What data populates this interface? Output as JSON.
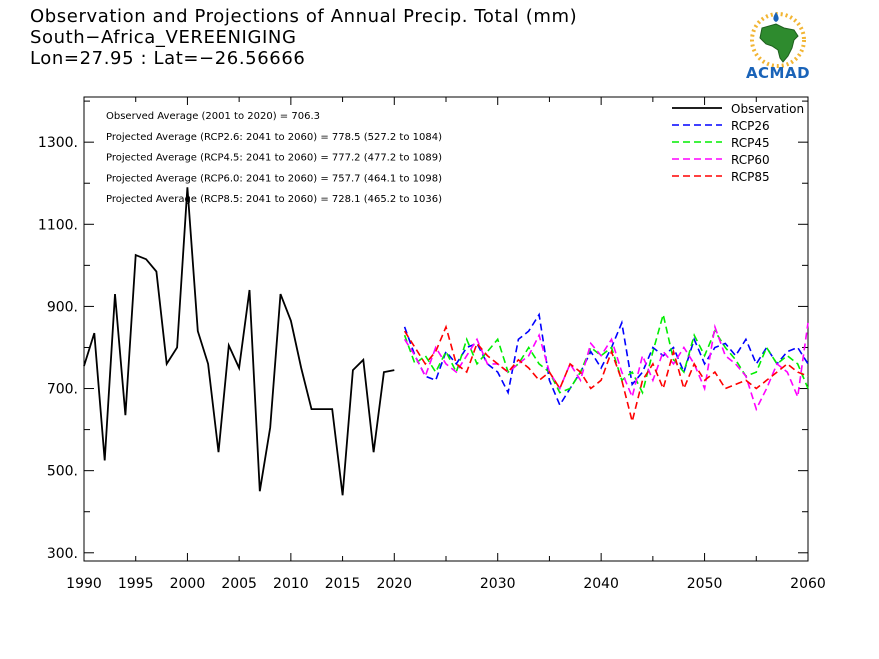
{
  "header": {
    "title": "Observation and Projections of Annual Precip. Total (mm)",
    "location": "South−Africa_VEREENIGING",
    "coords": "Lon=27.95 : Lat=−26.56666"
  },
  "logo": {
    "text": "ACMAD",
    "icon": "africa-map-icon"
  },
  "annotations": [
    "Observed Average (2001 to 2020) = 706.3",
    "Projected Average (RCP2.6: 2041 to 2060) = 778.5 (527.2 to 1084)",
    "Projected Average (RCP4.5: 2041 to 2060) = 777.2 (477.2 to 1089)",
    "Projected Average (RCP6.0: 2041 to 2060) = 757.7 (464.1 to 1098)",
    "Projected Average (RCP8.5: 2041 to 2060) = 728.1 (465.2 to 1036)"
  ],
  "chart_data": {
    "type": "line",
    "xlim": [
      1990,
      2060
    ],
    "ylim": [
      280,
      1410
    ],
    "x_ticks": [
      1990,
      1995,
      2000,
      2005,
      2010,
      2015,
      2020,
      2030,
      2040,
      2050,
      2060
    ],
    "y_ticks": [
      300,
      500,
      700,
      900,
      1100,
      1300
    ],
    "y_tick_labels": [
      "300.",
      "500.",
      "700.",
      "900.",
      "1100.",
      "1300."
    ],
    "legend_placement": "top-right",
    "grid": false,
    "series": [
      {
        "name": "Observation",
        "color": "#000000",
        "dashed": false,
        "x": [
          1990,
          1991,
          1992,
          1993,
          1994,
          1995,
          1996,
          1997,
          1998,
          1999,
          2000,
          2001,
          2002,
          2003,
          2004,
          2005,
          2006,
          2007,
          2008,
          2009,
          2010,
          2011,
          2012,
          2013,
          2014,
          2015,
          2016,
          2017,
          2018,
          2019,
          2020
        ],
        "y": [
          755,
          835,
          525,
          930,
          635,
          1025,
          1015,
          985,
          760,
          800,
          1190,
          840,
          760,
          545,
          805,
          750,
          940,
          450,
          605,
          930,
          865,
          750,
          650,
          650,
          650,
          440,
          745,
          770,
          545,
          740,
          745
        ]
      },
      {
        "name": "RCP26",
        "color": "#0000ff",
        "dashed": true,
        "x": [
          2021,
          2022,
          2023,
          2024,
          2025,
          2026,
          2027,
          2028,
          2029,
          2030,
          2031,
          2032,
          2033,
          2034,
          2035,
          2036,
          2037,
          2038,
          2039,
          2040,
          2041,
          2042,
          2043,
          2044,
          2045,
          2046,
          2047,
          2048,
          2049,
          2050,
          2051,
          2052,
          2053,
          2054,
          2055,
          2056,
          2057,
          2058,
          2059,
          2060
        ],
        "y": [
          850,
          780,
          730,
          720,
          790,
          760,
          800,
          810,
          760,
          740,
          690,
          820,
          840,
          880,
          720,
          660,
          700,
          740,
          790,
          750,
          800,
          860,
          710,
          740,
          800,
          780,
          800,
          740,
          820,
          760,
          800,
          810,
          780,
          820,
          760,
          800,
          760,
          790,
          800,
          760
        ]
      },
      {
        "name": "RCP45",
        "color": "#00ee00",
        "dashed": true,
        "x": [
          2021,
          2022,
          2023,
          2024,
          2025,
          2026,
          2027,
          2028,
          2029,
          2030,
          2031,
          2032,
          2033,
          2034,
          2035,
          2036,
          2037,
          2038,
          2039,
          2040,
          2041,
          2042,
          2043,
          2044,
          2045,
          2046,
          2047,
          2048,
          2049,
          2050,
          2051,
          2052,
          2053,
          2054,
          2055,
          2056,
          2057,
          2058,
          2059,
          2060
        ],
        "y": [
          830,
          760,
          780,
          740,
          790,
          740,
          820,
          760,
          790,
          820,
          740,
          760,
          800,
          760,
          740,
          690,
          700,
          740,
          800,
          780,
          800,
          720,
          740,
          690,
          790,
          880,
          770,
          740,
          830,
          780,
          840,
          800,
          770,
          730,
          740,
          800,
          760,
          780,
          760,
          700
        ]
      },
      {
        "name": "RCP60",
        "color": "#ff00ff",
        "dashed": true,
        "x": [
          2021,
          2022,
          2023,
          2024,
          2025,
          2026,
          2027,
          2028,
          2029,
          2030,
          2031,
          2032,
          2033,
          2034,
          2035,
          2036,
          2037,
          2038,
          2039,
          2040,
          2041,
          2042,
          2043,
          2044,
          2045,
          2046,
          2047,
          2048,
          2049,
          2050,
          2051,
          2052,
          2053,
          2054,
          2055,
          2056,
          2057,
          2058,
          2059,
          2060
        ],
        "y": [
          820,
          780,
          730,
          800,
          760,
          740,
          780,
          820,
          760,
          760,
          740,
          760,
          780,
          830,
          740,
          700,
          760,
          720,
          810,
          780,
          820,
          740,
          680,
          780,
          720,
          790,
          760,
          800,
          760,
          700,
          850,
          780,
          760,
          730,
          650,
          700,
          760,
          740,
          680,
          860
        ]
      },
      {
        "name": "RCP85",
        "color": "#ff0000",
        "dashed": true,
        "x": [
          2021,
          2022,
          2023,
          2024,
          2025,
          2026,
          2027,
          2028,
          2029,
          2030,
          2031,
          2032,
          2033,
          2034,
          2035,
          2036,
          2037,
          2038,
          2039,
          2040,
          2041,
          2042,
          2043,
          2044,
          2045,
          2046,
          2047,
          2048,
          2049,
          2050,
          2051,
          2052,
          2053,
          2054,
          2055,
          2056,
          2057,
          2058,
          2059,
          2060
        ],
        "y": [
          840,
          800,
          760,
          790,
          850,
          760,
          740,
          810,
          780,
          760,
          740,
          770,
          750,
          720,
          740,
          700,
          760,
          740,
          700,
          720,
          790,
          720,
          620,
          720,
          760,
          700,
          790,
          700,
          760,
          720,
          740,
          700,
          710,
          720,
          700,
          720,
          740,
          760,
          740,
          730
        ]
      }
    ]
  }
}
